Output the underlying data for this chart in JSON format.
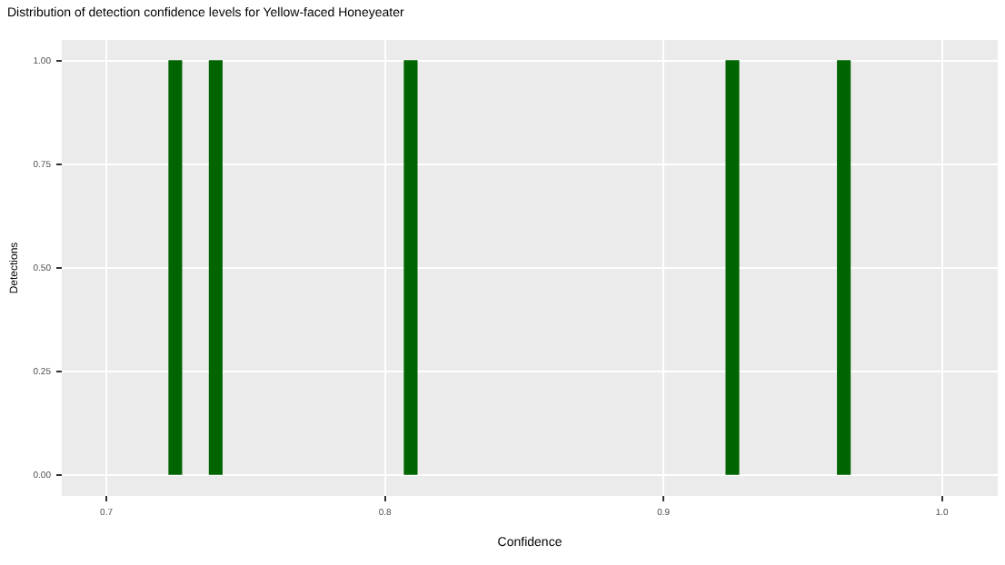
{
  "chart_data": {
    "type": "histogram",
    "title": "Distribution of detection confidence levels for Yellow-faced Honeyeater",
    "xlabel": "Confidence",
    "ylabel": "Detections",
    "bins": [
      0.7225,
      0.727,
      0.737,
      0.7415,
      0.807,
      0.8115,
      0.9225,
      0.927,
      0.9625,
      0.967
    ],
    "values": [
      1,
      0,
      1,
      0,
      1,
      0,
      1,
      0,
      1
    ],
    "color": "#006400",
    "xlim": [
      0.684,
      1.02
    ],
    "xticks": [
      0.7,
      0.8,
      0.9,
      {
        "value": 1,
        "label": "1.0"
      }
    ],
    "ylim": [
      -0.05,
      1.05
    ],
    "yticks": [
      {
        "value": 0,
        "label": "0.00"
      },
      {
        "value": 0.25,
        "label": "0.25"
      },
      {
        "value": 0.5,
        "label": "0.50"
      },
      {
        "value": 0.75,
        "label": "0.75"
      },
      {
        "value": 1,
        "label": "1.00"
      }
    ],
    "grid": true
  }
}
